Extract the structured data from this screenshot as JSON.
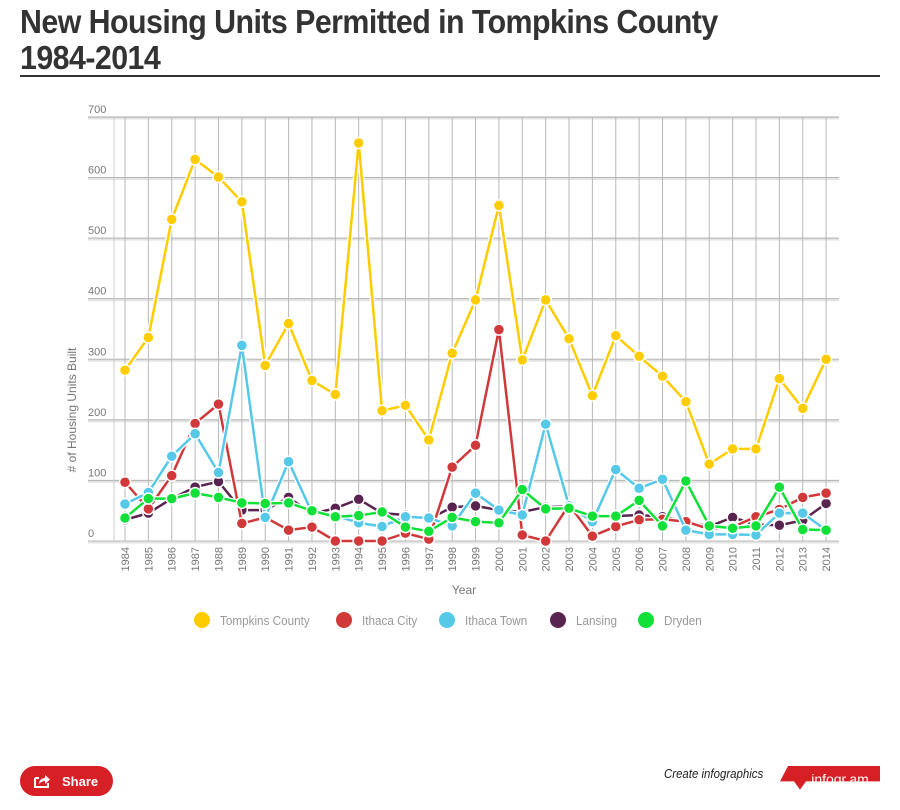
{
  "page": {
    "title_line1": "New Housing Units Permitted in Tompkins County",
    "title_line2": "1984-2014"
  },
  "chart_data": {
    "type": "line",
    "title": "New Housing Units Permitted in Tompkins County 1984-2014",
    "xlabel": "Year",
    "ylabel": "# of Housing Units Built",
    "ylim": [
      0,
      700
    ],
    "yticks": [
      0,
      100,
      200,
      300,
      400,
      500,
      600,
      700
    ],
    "grid": true,
    "legend_position": "bottom",
    "categories": [
      "1984",
      "1985",
      "1986",
      "1987",
      "1988",
      "1989",
      "1990",
      "1991",
      "1992",
      "1993",
      "1994",
      "1995",
      "1996",
      "1997",
      "1998",
      "1999",
      "2000",
      "2001",
      "2002",
      "2003",
      "2004",
      "2005",
      "2006",
      "2007",
      "2008",
      "2009",
      "2010",
      "2011",
      "2012",
      "2013",
      "2014"
    ],
    "series": [
      {
        "name": "Lansing",
        "color": "#5a2450",
        "values": [
          35,
          46,
          70,
          89,
          98,
          51,
          51,
          72,
          45,
          54,
          69,
          46,
          43,
          36,
          56,
          58,
          51,
          48,
          56,
          57,
          41,
          41,
          43,
          40,
          32,
          24,
          39,
          27,
          26,
          34,
          62
        ]
      },
      {
        "name": "Ithaca City",
        "color": "#d0383a",
        "values": [
          97,
          53,
          108,
          194,
          226,
          29,
          39,
          18,
          23,
          0,
          0,
          0,
          13,
          3,
          122,
          158,
          349,
          10,
          0,
          60,
          8,
          24,
          35,
          36,
          32,
          20,
          23,
          40,
          52,
          72,
          79
        ]
      },
      {
        "name": "Ithaca Town",
        "color": "#56c8e8",
        "values": [
          61,
          80,
          140,
          177,
          113,
          323,
          39,
          131,
          47,
          42,
          30,
          24,
          40,
          38,
          25,
          79,
          51,
          43,
          193,
          58,
          32,
          118,
          87,
          102,
          18,
          11,
          11,
          10,
          46,
          46,
          18
        ]
      },
      {
        "name": "Dryden",
        "color": "#10e037",
        "values": [
          38,
          70,
          70,
          79,
          72,
          63,
          62,
          63,
          50,
          40,
          42,
          48,
          23,
          16,
          39,
          32,
          30,
          85,
          53,
          54,
          41,
          41,
          67,
          25,
          99,
          25,
          21,
          25,
          89,
          19,
          18
        ]
      },
      {
        "name": "Tompkins County",
        "color": "#ffcc00",
        "values": [
          282,
          336,
          531,
          630,
          601,
          560,
          290,
          359,
          265,
          242,
          657,
          215,
          224,
          167,
          310,
          398,
          554,
          299,
          398,
          334,
          240,
          339,
          305,
          272,
          230,
          127,
          152,
          152,
          268,
          219,
          300
        ]
      }
    ],
    "legend": [
      {
        "name": "Tompkins County",
        "color": "#ffcc00"
      },
      {
        "name": "Ithaca City",
        "color": "#d0383a"
      },
      {
        "name": "Ithaca Town",
        "color": "#56c8e8"
      },
      {
        "name": "Lansing",
        "color": "#5a2450"
      },
      {
        "name": "Dryden",
        "color": "#10e037"
      }
    ]
  },
  "footer": {
    "share_label": "Share",
    "share_icon": "share-icon",
    "create_text": "Create infographics",
    "brand_label": "infogr.am",
    "brand_color": "#d71f26"
  }
}
